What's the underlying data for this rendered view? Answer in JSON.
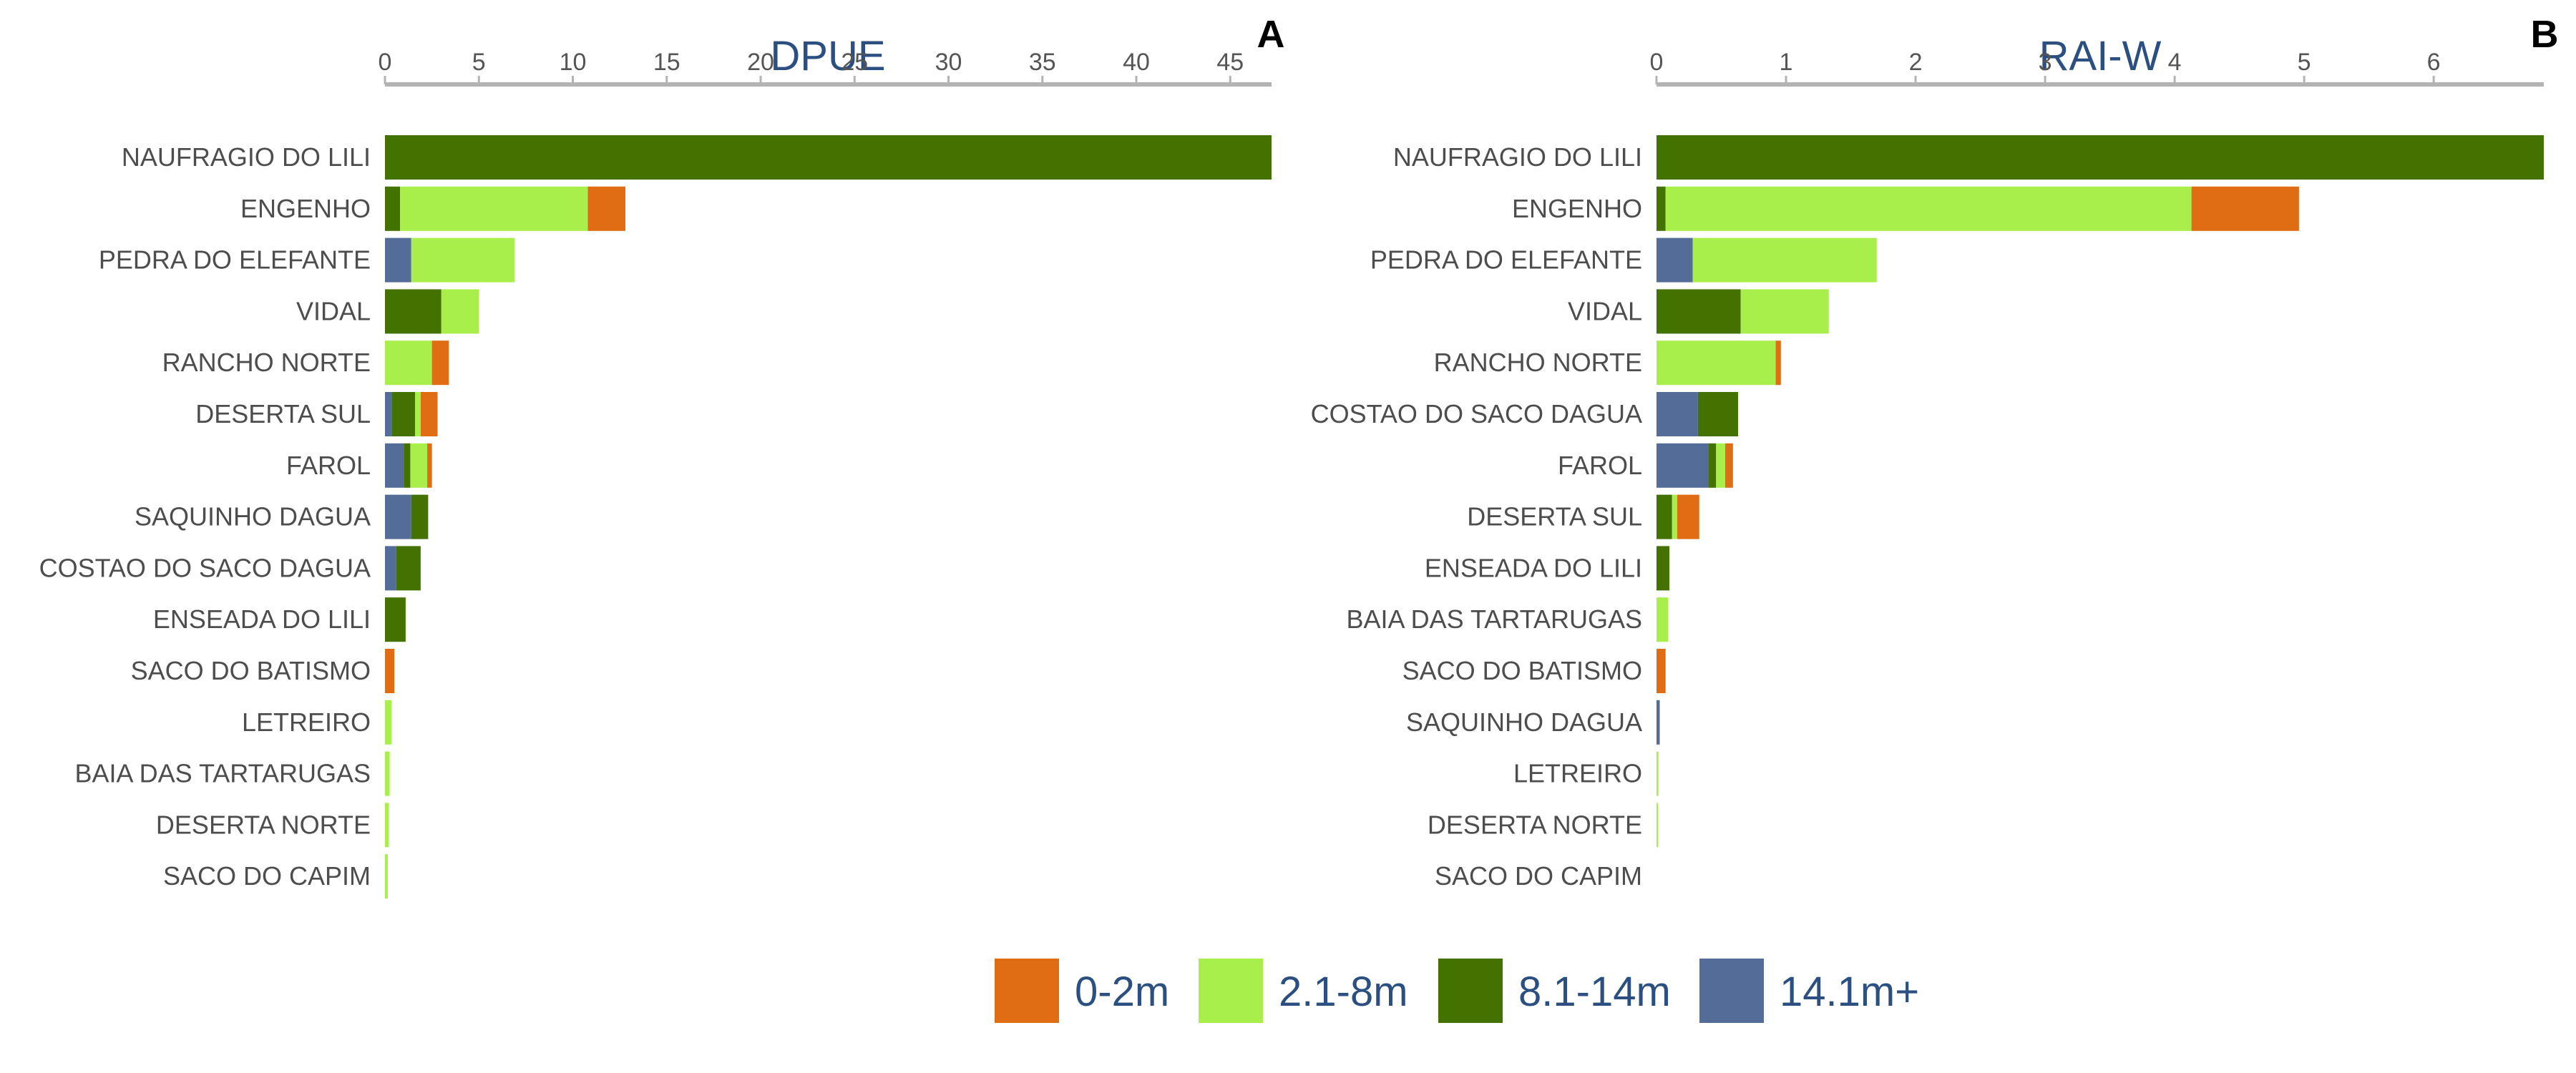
{
  "colors": {
    "title": "#2b4f80",
    "tick_label": "#555555",
    "axis": "#b3b3b3",
    "category_label": "#4d4d4d",
    "panel_letter": "#000000",
    "legend_text": "#2b4f80"
  },
  "legend": {
    "placement": "bottom-center",
    "items": [
      {
        "name": "0-2m",
        "color": "#e06c14"
      },
      {
        "name": "2.1-8m",
        "color": "#a9ef4c"
      },
      {
        "name": "8.1-14m",
        "color": "#437200"
      },
      {
        "name": "14.1m+",
        "color": "#536d98"
      }
    ]
  },
  "chart_data": [
    {
      "type": "bar",
      "orientation": "horizontal",
      "stacked": true,
      "panel_label": "A",
      "title": "DPUE",
      "xlabel": "",
      "ylabel": "",
      "xlim": [
        0,
        47.2
      ],
      "xticks": [
        0,
        5,
        10,
        15,
        20,
        25,
        30,
        35,
        40,
        45
      ],
      "grid": false,
      "stack_order": [
        "14.1m+",
        "8.1-14m",
        "2.1-8m",
        "0-2m"
      ],
      "categories": [
        "NAUFRAGIO DO LILI",
        "ENGENHO",
        "PEDRA DO ELEFANTE",
        "VIDAL",
        "RANCHO NORTE",
        "DESERTA SUL",
        "FAROL",
        "SAQUINHO DAGUA",
        "COSTAO DO SACO DAGUA",
        "ENSEADA DO LILI",
        "SACO DO BATISMO",
        "LETREIRO",
        "BAIA DAS TARTARUGAS",
        "DESERTA NORTE",
        "SACO DO CAPIM"
      ],
      "series": [
        {
          "name": "14.1m+",
          "values": [
            0,
            0,
            1.4,
            0,
            0,
            0.35,
            1.0,
            1.4,
            0.6,
            0,
            0,
            0,
            0,
            0,
            0
          ]
        },
        {
          "name": "8.1-14m",
          "values": [
            47.2,
            0.8,
            0,
            3.0,
            0,
            1.25,
            0.35,
            0.9,
            1.3,
            1.1,
            0,
            0,
            0,
            0,
            0
          ]
        },
        {
          "name": "2.1-8m",
          "values": [
            0,
            10.0,
            5.5,
            2.0,
            2.5,
            0.3,
            0.9,
            0,
            0,
            0,
            0,
            0.35,
            0.25,
            0.2,
            0.15
          ]
        },
        {
          "name": "0-2m",
          "values": [
            0,
            2.0,
            0,
            0,
            0.9,
            0.9,
            0.25,
            0,
            0,
            0,
            0.5,
            0,
            0,
            0,
            0
          ]
        }
      ]
    },
    {
      "type": "bar",
      "orientation": "horizontal",
      "stacked": true,
      "panel_label": "B",
      "title": "RAI-W",
      "xlabel": "",
      "ylabel": "",
      "xlim": [
        0,
        6.85
      ],
      "xticks": [
        0,
        1,
        2,
        3,
        4,
        5,
        6
      ],
      "grid": false,
      "stack_order": [
        "14.1m+",
        "8.1-14m",
        "2.1-8m",
        "0-2m"
      ],
      "categories": [
        "NAUFRAGIO DO LILI",
        "ENGENHO",
        "PEDRA DO ELEFANTE",
        "VIDAL",
        "RANCHO NORTE",
        "COSTAO DO SACO DAGUA",
        "FAROL",
        "DESERTA SUL",
        "ENSEADA DO LILI",
        "BAIA DAS TARTARUGAS",
        "SACO DO BATISMO",
        "SAQUINHO DAGUA",
        "LETREIRO",
        "DESERTA NORTE",
        "SACO DO CAPIM"
      ],
      "series": [
        {
          "name": "14.1m+",
          "values": [
            0,
            0,
            0.28,
            0,
            0,
            0.32,
            0.4,
            0,
            0,
            0,
            0,
            0.025,
            0,
            0,
            0
          ]
        },
        {
          "name": "8.1-14m",
          "values": [
            6.85,
            0.07,
            0,
            0.65,
            0,
            0.31,
            0.06,
            0.12,
            0.1,
            0,
            0,
            0,
            0,
            0,
            0
          ]
        },
        {
          "name": "2.1-8m",
          "values": [
            0,
            4.06,
            1.42,
            0.68,
            0.92,
            0,
            0.07,
            0.04,
            0,
            0.09,
            0,
            0,
            0.015,
            0.012,
            0
          ]
        },
        {
          "name": "0-2m",
          "values": [
            0,
            0.83,
            0,
            0,
            0.04,
            0,
            0.06,
            0.17,
            0,
            0,
            0.07,
            0,
            0,
            0,
            0
          ]
        }
      ]
    }
  ]
}
